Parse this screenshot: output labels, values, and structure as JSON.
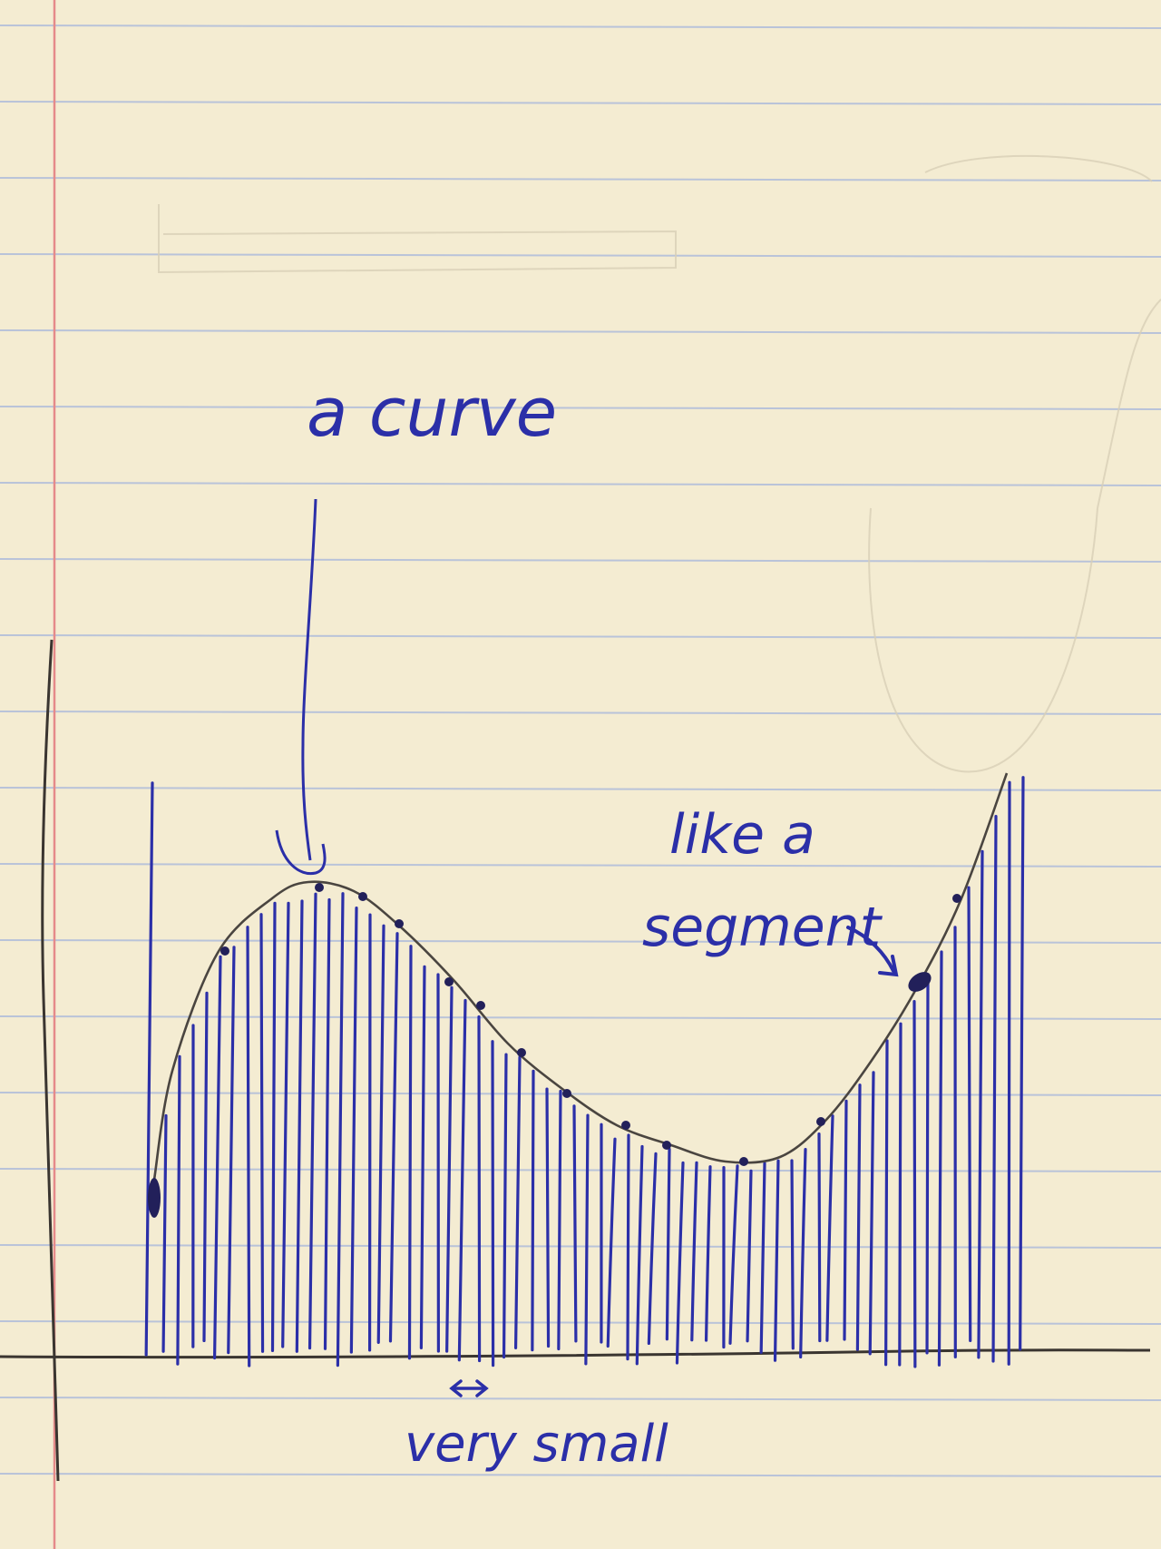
{
  "annotations": {
    "curve": "a curve",
    "segment_line1": "like a",
    "segment_line2": "segment",
    "small": "very small"
  },
  "colors": {
    "paper": "#f4ecd2",
    "rule_line": "#b9c3d9",
    "margin_line": "#e58a8a",
    "pencil": "#3a3530",
    "ink": "#2b2fa8"
  },
  "icons": [
    "arrow-icon",
    "double-arrow-icon"
  ]
}
